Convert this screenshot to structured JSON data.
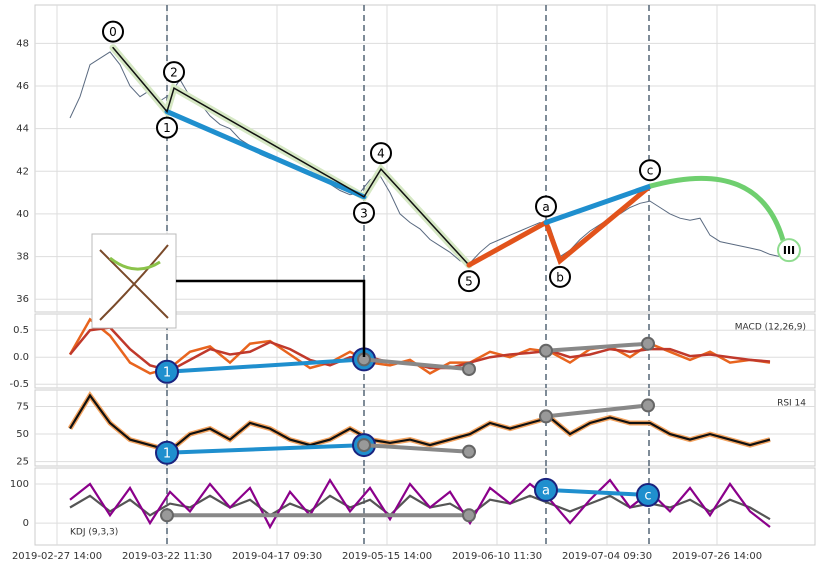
{
  "chart_data": [
    {
      "type": "line",
      "xlim": [
        0,
        780
      ],
      "ylim": [
        35.4,
        49.8
      ],
      "yticks": [
        36,
        38,
        40,
        42,
        44,
        46,
        48
      ],
      "grid": true,
      "x": [
        35,
        45,
        55,
        65,
        75,
        85,
        95,
        105,
        115,
        125,
        135,
        145,
        155,
        165,
        175,
        185,
        195,
        205,
        215,
        225,
        235,
        245,
        255,
        265,
        275,
        285,
        295,
        305,
        315,
        325,
        335,
        345,
        355,
        365,
        375,
        385,
        395,
        405,
        415,
        425,
        435,
        445,
        455,
        465,
        475,
        485,
        495,
        505,
        515,
        525,
        535,
        545,
        555,
        565,
        575,
        585,
        595,
        605,
        615,
        625,
        635,
        645,
        655,
        665,
        675,
        685,
        695,
        705,
        715,
        725,
        735,
        745
      ],
      "series": [
        {
          "color": "#5a6a80",
          "values": [
            44.5,
            45.5,
            47,
            47.3,
            47.6,
            47,
            46,
            45.5,
            45.8,
            45.3,
            45.6,
            46.3,
            45.5,
            45.2,
            44.6,
            44.2,
            44,
            43.5,
            43.2,
            42.8,
            42.6,
            42.5,
            42.3,
            42,
            41.8,
            41.6,
            41.4,
            41.1,
            40.9,
            41,
            41.6,
            41.8,
            41,
            40,
            39.6,
            39.3,
            38.8,
            38.5,
            38.2,
            37.8,
            37.7,
            38.2,
            38.6,
            38.8,
            39,
            39.2,
            39.4,
            39.6,
            39.4,
            38,
            38.3,
            38.8,
            39.2,
            39.5,
            39.8,
            40,
            40.3,
            40.5,
            40.6,
            40.3,
            40,
            39.8,
            39.7,
            39.8,
            39,
            38.7,
            38.6,
            38.5,
            38.4,
            38.3,
            38.1,
            38
          ]
        }
      ],
      "waves": {
        "x": [
          78,
          132,
          139,
          329,
          346,
          434,
          511,
          525,
          615
        ],
        "values": [
          47.8,
          44.8,
          45.9,
          40.8,
          42.1,
          37.6,
          39.6,
          37.8,
          41.3
        ],
        "labels": [
          "0",
          "1",
          "2",
          "3",
          "4",
          "5",
          "a",
          "b",
          "c"
        ]
      },
      "target": {
        "x": 752,
        "value": 38.3,
        "label": "III"
      },
      "vlines": [
        132,
        329,
        511,
        614
      ]
    },
    {
      "type": "line",
      "label": "MACD (12,26,9)",
      "xlim": [
        0,
        780
      ],
      "ylim": [
        -0.57,
        0.8
      ],
      "yticks": [
        {
          "value": 0.5,
          "label": "0.5"
        },
        {
          "value": 0,
          "label": "0.0"
        },
        {
          "value": -0.5,
          "label": "-0.5"
        }
      ],
      "x": [
        35,
        55,
        75,
        95,
        115,
        135,
        155,
        175,
        195,
        215,
        235,
        255,
        275,
        295,
        315,
        335,
        355,
        375,
        395,
        415,
        435,
        455,
        475,
        495,
        515,
        535,
        555,
        575,
        595,
        615,
        635,
        655,
        675,
        695,
        715,
        735
      ],
      "series": [
        {
          "color": "#e8641e",
          "values": [
            0.05,
            0.7,
            0.4,
            -0.1,
            -0.3,
            -0.2,
            0.1,
            0.2,
            -0.1,
            0.25,
            0.3,
            0.05,
            -0.2,
            -0.1,
            0.1,
            -0.1,
            -0.15,
            -0.05,
            -0.3,
            -0.1,
            -0.1,
            0.1,
            0,
            0.15,
            0.1,
            -0.1,
            0.15,
            0.2,
            0,
            0.25,
            0.1,
            -0.05,
            0.1,
            -0.1,
            -0.05,
            -0.1
          ]
        },
        {
          "color": "#c0392b",
          "values": [
            0.05,
            0.5,
            0.55,
            0.15,
            -0.15,
            -0.25,
            -0.05,
            0.15,
            0.05,
            0.1,
            0.28,
            0.15,
            -0.05,
            -0.15,
            0,
            0,
            -0.1,
            -0.1,
            -0.2,
            -0.2,
            -0.1,
            0,
            0.05,
            0.08,
            0.12,
            0,
            0.05,
            0.15,
            0.1,
            0.15,
            0.15,
            0.02,
            0.05,
            0,
            -0.05,
            -0.08
          ]
        }
      ],
      "divergences": [
        {
          "color": "#1f8fce",
          "x": [
            132,
            329
          ],
          "values": [
            -0.27,
            -0.04
          ],
          "labels": [
            "1",
            "3"
          ]
        },
        {
          "color": "#888888",
          "x": [
            329,
            434
          ],
          "values": [
            -0.04,
            -0.22
          ]
        },
        {
          "color": "#888888",
          "x": [
            511,
            613
          ],
          "values": [
            0.12,
            0.25
          ]
        }
      ],
      "vlines": [
        132,
        329,
        511,
        614
      ]
    },
    {
      "type": "line",
      "label": "RSI 14",
      "xlim": [
        0,
        780
      ],
      "ylim": [
        21,
        90
      ],
      "yticks": [
        25,
        50,
        75
      ],
      "x": [
        35,
        55,
        75,
        95,
        115,
        135,
        155,
        175,
        195,
        215,
        235,
        255,
        275,
        295,
        315,
        335,
        355,
        375,
        395,
        415,
        435,
        455,
        475,
        495,
        515,
        535,
        555,
        575,
        595,
        615,
        635,
        655,
        675,
        695,
        715,
        735
      ],
      "series": [
        {
          "color": "#111111",
          "values": [
            55,
            85,
            60,
            45,
            40,
            35,
            50,
            55,
            45,
            60,
            55,
            45,
            40,
            45,
            55,
            45,
            42,
            45,
            40,
            45,
            50,
            60,
            55,
            60,
            65,
            50,
            60,
            65,
            60,
            60,
            50,
            45,
            50,
            45,
            40,
            45
          ]
        }
      ],
      "divergences": [
        {
          "color": "#1f8fce",
          "x": [
            132,
            329
          ],
          "values": [
            33,
            40
          ],
          "labels": [
            "1",
            "3"
          ]
        },
        {
          "color": "#888888",
          "x": [
            329,
            434
          ],
          "values": [
            40,
            34
          ]
        },
        {
          "color": "#888888",
          "x": [
            511,
            613
          ],
          "values": [
            66,
            76
          ]
        }
      ],
      "vlines": [
        132,
        329,
        511,
        614
      ]
    },
    {
      "type": "line",
      "label": "KDJ (9,3,3)",
      "xlim": [
        0,
        780
      ],
      "ylim": [
        -56,
        141
      ],
      "yticks": [
        100,
        0
      ],
      "xticks": [
        {
          "value": 22,
          "label": "2019-02-27 14:00"
        },
        {
          "value": 132,
          "label": "2019-03-22 11:30"
        },
        {
          "value": 242,
          "label": "2019-04-17 09:30"
        },
        {
          "value": 352,
          "label": "2019-05-15 14:00"
        },
        {
          "value": 462,
          "label": "2019-06-10 11:30"
        },
        {
          "value": 572,
          "label": "2019-07-04 09:30"
        },
        {
          "value": 682,
          "label": "2019-07-26 14:00"
        }
      ],
      "x": [
        35,
        55,
        75,
        95,
        115,
        135,
        155,
        175,
        195,
        215,
        235,
        255,
        275,
        295,
        315,
        335,
        355,
        375,
        395,
        415,
        435,
        455,
        475,
        495,
        515,
        535,
        555,
        575,
        595,
        615,
        635,
        655,
        675,
        695,
        715,
        735
      ],
      "series": [
        {
          "color": "#555555",
          "values": [
            40,
            70,
            30,
            60,
            20,
            50,
            40,
            70,
            40,
            60,
            20,
            50,
            30,
            70,
            40,
            60,
            20,
            70,
            40,
            50,
            20,
            60,
            50,
            70,
            50,
            30,
            50,
            70,
            40,
            50,
            40,
            60,
            30,
            60,
            40,
            10
          ]
        },
        {
          "color": "#8b008b",
          "values": [
            60,
            100,
            20,
            90,
            0,
            80,
            30,
            100,
            40,
            90,
            -10,
            80,
            20,
            110,
            30,
            90,
            10,
            100,
            40,
            80,
            0,
            90,
            50,
            100,
            60,
            0,
            60,
            110,
            40,
            80,
            30,
            90,
            20,
            100,
            30,
            -10
          ]
        }
      ],
      "divergences": [
        {
          "color": "#1f8fce",
          "x": [
            511,
            613
          ],
          "values": [
            85,
            72
          ],
          "labels": [
            "a",
            "c"
          ]
        },
        {
          "color": "#888888",
          "x": [
            132,
            434
          ],
          "values": [
            20,
            20
          ]
        }
      ],
      "vlines": [
        132,
        329,
        511,
        614
      ]
    }
  ]
}
